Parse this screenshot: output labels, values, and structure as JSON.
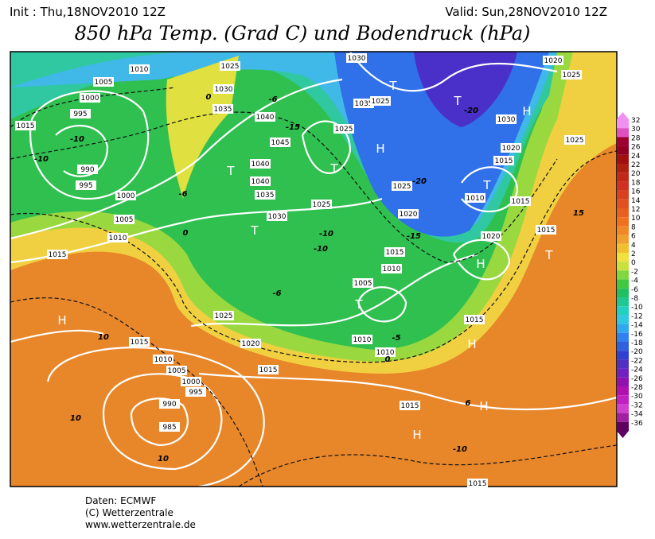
{
  "header": {
    "init": "Init : Thu,18NOV2010 12Z",
    "valid": "Valid: Sun,28NOV2010 12Z",
    "title": "850 hPa Temp. (Grad C) und Bodendruck (hPa)"
  },
  "map": {
    "isobar_labels": [
      "1010",
      "1005",
      "1000",
      "995",
      "1015",
      "990",
      "995",
      "1000",
      "1005",
      "1010",
      "1015",
      "1025",
      "1030",
      "1035",
      "1040",
      "1045",
      "1040",
      "1040",
      "1035",
      "1030",
      "1025",
      "1030",
      "1035",
      "1025",
      "1025",
      "1030",
      "1020",
      "1025",
      "1025",
      "1020",
      "1015",
      "1010",
      "1025",
      "1020",
      "1015",
      "1020",
      "1015",
      "1015",
      "1010",
      "1005",
      "1025",
      "1020",
      "1015",
      "1010",
      "1010",
      "1015",
      "1015",
      "1010",
      "1005",
      "1000",
      "995",
      "990",
      "985",
      "1015",
      "1015"
    ],
    "temperature_labels": [
      "-10",
      "-10",
      "-6",
      "-15",
      "-20",
      "-20",
      "-15",
      "-10",
      "-10",
      "-6",
      "10",
      "10",
      "10",
      "-10",
      "15",
      "-5",
      "0",
      "0",
      "0",
      "-6",
      "6"
    ],
    "pressure_centers": [
      "H",
      "T",
      "T",
      "T",
      "T",
      "H",
      "T",
      "H",
      "T",
      "T",
      "H",
      "H",
      "H",
      "T",
      "H"
    ]
  },
  "scale": {
    "labels": [
      32,
      30,
      28,
      26,
      24,
      22,
      20,
      18,
      16,
      14,
      12,
      10,
      8,
      6,
      4,
      2,
      0,
      -2,
      -4,
      -6,
      -8,
      -10,
      -12,
      -14,
      -16,
      -18,
      -20,
      -22,
      -24,
      -26,
      -28,
      -30,
      -32,
      -34,
      -36
    ],
    "colors": [
      "#f090f0",
      "#e050c0",
      "#a00030",
      "#900020",
      "#a01010",
      "#b02010",
      "#c02818",
      "#d03020",
      "#d84020",
      "#e05020",
      "#e86020",
      "#f07020",
      "#f08828",
      "#f0a030",
      "#f0c030",
      "#f0e040",
      "#c8e040",
      "#80d840",
      "#40c840",
      "#20c060",
      "#20c890",
      "#20d0c0",
      "#30c8e0",
      "#30a8f0",
      "#3080f0",
      "#3060e0",
      "#3040d0",
      "#5030c0",
      "#7020c0",
      "#9010b0",
      "#b010b0",
      "#c020c0",
      "#d040d0",
      "#a020a0",
      "#600060"
    ]
  },
  "footer": {
    "line1": "Daten: ECMWF",
    "line2": "(C) Wetterzentrale",
    "line3": "www.wetterzentrale.de"
  }
}
